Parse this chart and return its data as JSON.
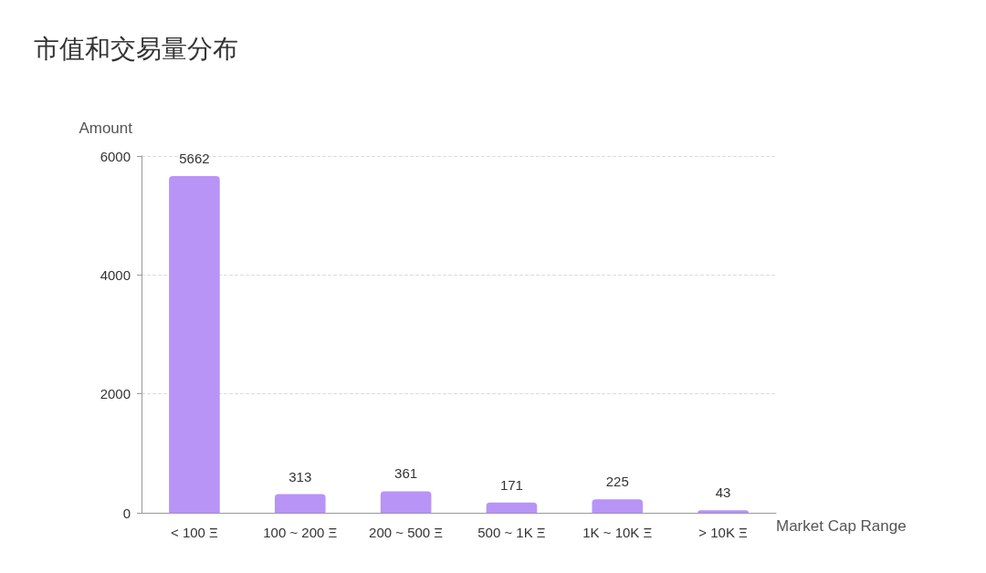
{
  "chart_data": {
    "type": "bar",
    "title": "市值和交易量分布",
    "xlabel": "Market Cap Range",
    "ylabel": "Amount",
    "categories": [
      "< 100 Ξ",
      "100 ~ 200 Ξ",
      "200 ~ 500 Ξ",
      "500 ~ 1K Ξ",
      "1K ~ 10K Ξ",
      "> 10K Ξ"
    ],
    "values": [
      5662,
      313,
      361,
      171,
      225,
      43
    ],
    "color": "#b794f6",
    "ylim": [
      0,
      6000
    ],
    "yticks": [
      0,
      2000,
      4000,
      6000
    ],
    "grid": "y",
    "data_labels": true
  }
}
